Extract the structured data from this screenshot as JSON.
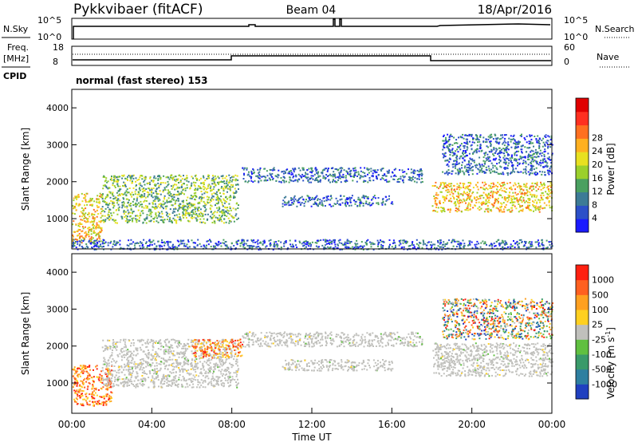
{
  "header": {
    "title": "Pykkvibaer (fitACF)",
    "beam": "Beam 04",
    "date": "18/Apr/2016"
  },
  "top_panels": {
    "nsky_label": "N.Sky",
    "nsearch_label": "N.Search",
    "freq_label_line1": "Freq.",
    "freq_label_line2": "[MHz]",
    "nave_label": "Nave",
    "cpid_label": "CPID",
    "cpid_text": "normal (fast stereo) 153",
    "noise_ticks": [
      "10^5",
      "10^0"
    ],
    "freq_ticks": [
      "18",
      "8"
    ],
    "nave_ticks": [
      "60",
      "0"
    ]
  },
  "chart_data": [
    {
      "type": "heatmap",
      "name": "power",
      "ylabel": "Slant Range [km]",
      "xlabel": "",
      "ylim": [
        180,
        4500
      ],
      "yticks": [
        1000,
        2000,
        3000,
        4000
      ],
      "colorbar": {
        "label": "Power [dB]",
        "ticks": [
          "4",
          "8",
          "12",
          "16",
          "20",
          "24",
          "28"
        ],
        "colors": [
          "#1a1aff",
          "#2c50c8",
          "#3d7b96",
          "#4aa060",
          "#9bd02c",
          "#e8e020",
          "#ffb020",
          "#ff7020",
          "#ff3020",
          "#e00000"
        ]
      },
      "echo_regions": [
        {
          "t0": 0.0,
          "t1": 1.5,
          "r0": 350,
          "r1": 1700,
          "level": "high"
        },
        {
          "t0": 1.5,
          "t1": 8.3,
          "r0": 900,
          "r1": 2200,
          "level": "medium"
        },
        {
          "t0": 8.5,
          "t1": 17.5,
          "r0": 2000,
          "r1": 2400,
          "level": "low"
        },
        {
          "t0": 10.5,
          "t1": 16.0,
          "r0": 1350,
          "r1": 1650,
          "level": "low"
        },
        {
          "t0": 18.0,
          "t1": 24.0,
          "r0": 1200,
          "r1": 2000,
          "level": "high"
        },
        {
          "t0": 18.5,
          "t1": 24.0,
          "r0": 2200,
          "r1": 3300,
          "level": "low"
        },
        {
          "t0": 0.0,
          "t1": 24.0,
          "r0": 180,
          "r1": 450,
          "level": "low"
        }
      ]
    },
    {
      "type": "heatmap",
      "name": "velocity",
      "ylabel": "Slant Range [km]",
      "xlabel": "Time UT",
      "ylim": [
        180,
        4500
      ],
      "yticks": [
        1000,
        2000,
        3000,
        4000
      ],
      "xticks": [
        "00:00",
        "04:00",
        "08:00",
        "12:00",
        "16:00",
        "20:00",
        "00:00"
      ],
      "colorbar": {
        "label": "Velocity [m s",
        "label_sup": "-1",
        "label_end": "]",
        "ticks": [
          "1000",
          "500",
          "100",
          "25",
          "-25",
          "-100",
          "-500",
          "-1000"
        ],
        "colors": [
          "#2040c0",
          "#2e7fa0",
          "#3a9a6a",
          "#60c040",
          "#c0c0bc",
          "#ffd020",
          "#ffa020",
          "#ff6020",
          "#ff2010"
        ]
      },
      "echo_regions": [
        {
          "t0": 0.0,
          "t1": 2.0,
          "r0": 400,
          "r1": 1500,
          "level": "negative"
        },
        {
          "t0": 1.5,
          "t1": 8.3,
          "r0": 900,
          "r1": 2200,
          "level": "ground"
        },
        {
          "t0": 6.0,
          "t1": 8.5,
          "r0": 1700,
          "r1": 2200,
          "level": "negative"
        },
        {
          "t0": 8.5,
          "t1": 17.5,
          "r0": 2000,
          "r1": 2400,
          "level": "ground"
        },
        {
          "t0": 10.5,
          "t1": 16.0,
          "r0": 1350,
          "r1": 1650,
          "level": "ground"
        },
        {
          "t0": 18.0,
          "t1": 24.0,
          "r0": 1200,
          "r1": 2100,
          "level": "ground"
        },
        {
          "t0": 18.5,
          "t1": 24.0,
          "r0": 2200,
          "r1": 3300,
          "level": "mixed"
        }
      ]
    }
  ]
}
